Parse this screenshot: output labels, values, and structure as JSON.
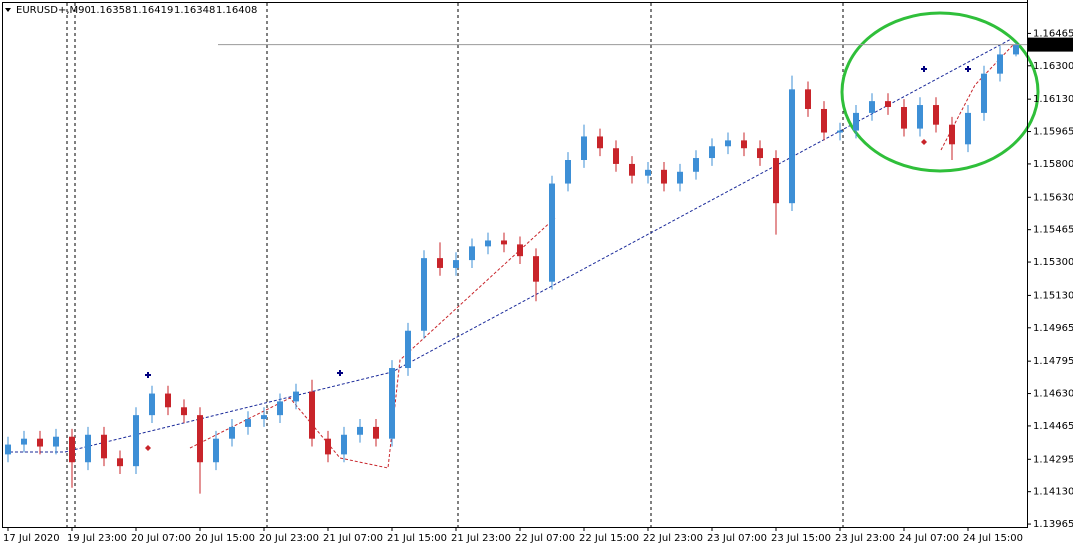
{
  "chart_data": {
    "type": "candlestick",
    "symbol": "EURUSD+,M90",
    "categories": [
      "17 Jul 2020",
      null,
      null,
      null,
      "19 Jul 23:00",
      null,
      null,
      null,
      "20 Jul 07:00",
      null,
      null,
      null,
      "20 Jul 15:00",
      null,
      null,
      null,
      "20 Jul 23:00",
      null,
      null,
      null,
      "21 Jul 07:00",
      null,
      null,
      null,
      "21 Jul 15:00",
      null,
      null,
      null,
      "21 Jul 23:00",
      null,
      null,
      null,
      "22 Jul 07:00",
      null,
      null,
      null,
      "22 Jul 15:00",
      null,
      null,
      null,
      "22 Jul 23:00",
      null,
      null,
      null,
      "23 Jul 07:00",
      null,
      null,
      null,
      "23 Jul 15:00",
      null,
      null,
      null,
      "23 Jul 23:00",
      null,
      null,
      null,
      "24 Jul 07:00",
      null,
      null,
      null,
      "24 Jul 15:00",
      null,
      null,
      null
    ],
    "open": [
      1.1432,
      1.1437,
      1.144,
      1.1436,
      1.1441,
      1.1428,
      1.1442,
      1.143,
      1.1426,
      1.1452,
      1.1463,
      1.1456,
      1.1452,
      1.1428,
      1.144,
      1.1446,
      1.145,
      1.1452,
      1.1459,
      1.1464,
      1.144,
      1.1432,
      1.1442,
      1.1446,
      1.144,
      1.1476,
      1.1495,
      1.1532,
      1.1527,
      1.1531,
      1.1538,
      1.1541,
      1.1539,
      1.1533,
      1.152,
      1.157,
      1.1582,
      1.1594,
      1.1588,
      1.158,
      1.1574,
      1.1577,
      1.157,
      1.1576,
      1.1583,
      1.1589,
      1.1592,
      1.1588,
      1.1583,
      1.156,
      1.1618,
      1.1608,
      1.1596,
      1.1597,
      1.1606,
      1.1612,
      1.1609,
      1.1598,
      1.161,
      1.16,
      1.159,
      1.1606,
      1.1626,
      1.16358
    ],
    "high": [
      1.1441,
      1.1444,
      1.1444,
      1.1445,
      1.1445,
      1.1446,
      1.1446,
      1.1434,
      1.1456,
      1.1467,
      1.1467,
      1.146,
      1.1456,
      1.1444,
      1.145,
      1.1454,
      1.1456,
      1.1463,
      1.1468,
      1.147,
      1.1444,
      1.1446,
      1.145,
      1.145,
      1.148,
      1.1499,
      1.1536,
      1.154,
      1.1535,
      1.1542,
      1.1545,
      1.1545,
      1.1543,
      1.1537,
      1.1574,
      1.1586,
      1.16,
      1.1598,
      1.1592,
      1.1584,
      1.1581,
      1.1581,
      1.158,
      1.1587,
      1.1593,
      1.1596,
      1.1596,
      1.1592,
      1.1587,
      1.1625,
      1.1622,
      1.1612,
      1.1601,
      1.161,
      1.1616,
      1.1616,
      1.1613,
      1.1614,
      1.1614,
      1.1604,
      1.161,
      1.163,
      1.164,
      1.16419
    ],
    "low": [
      1.1428,
      1.1433,
      1.1432,
      1.1432,
      1.1415,
      1.1424,
      1.1426,
      1.1422,
      1.1422,
      1.1448,
      1.1452,
      1.1448,
      1.1412,
      1.1424,
      1.1436,
      1.1442,
      1.1446,
      1.1448,
      1.1455,
      1.1436,
      1.1428,
      1.1428,
      1.1438,
      1.1436,
      1.1436,
      1.1472,
      1.1491,
      1.1523,
      1.1523,
      1.1527,
      1.1534,
      1.1535,
      1.1529,
      1.151,
      1.1516,
      1.1566,
      1.1578,
      1.1584,
      1.1576,
      1.157,
      1.157,
      1.1566,
      1.1566,
      1.1572,
      1.1579,
      1.1585,
      1.1584,
      1.1579,
      1.1544,
      1.1556,
      1.1604,
      1.1592,
      1.1592,
      1.1593,
      1.1602,
      1.1605,
      1.1594,
      1.1594,
      1.1596,
      1.1582,
      1.1586,
      1.1602,
      1.1622,
      1.16348
    ],
    "close": [
      1.1437,
      1.144,
      1.1436,
      1.1441,
      1.1428,
      1.1442,
      1.143,
      1.1426,
      1.1452,
      1.1463,
      1.1456,
      1.1452,
      1.1428,
      1.144,
      1.1446,
      1.145,
      1.1452,
      1.1459,
      1.1464,
      1.144,
      1.1432,
      1.1442,
      1.1446,
      1.144,
      1.1476,
      1.1495,
      1.1532,
      1.1527,
      1.1531,
      1.1538,
      1.1541,
      1.1539,
      1.1533,
      1.152,
      1.157,
      1.1582,
      1.1594,
      1.1588,
      1.158,
      1.1574,
      1.1577,
      1.157,
      1.1576,
      1.1583,
      1.1589,
      1.1592,
      1.1588,
      1.1583,
      1.156,
      1.1618,
      1.1608,
      1.1596,
      1.1597,
      1.1606,
      1.1612,
      1.1609,
      1.1598,
      1.161,
      1.16,
      1.159,
      1.1606,
      1.1626,
      1.16358,
      1.16408
    ],
    "up_color": "#3d8fd6",
    "down_color": "#c8242a",
    "ylim": [
      1.1395,
      1.1662
    ],
    "yticks": [
      {
        "value": 1.16465,
        "label": "1.16465"
      },
      {
        "value": 1.163,
        "label": "1.16300"
      },
      {
        "value": 1.1613,
        "label": "1.16130"
      },
      {
        "value": 1.15965,
        "label": "1.15965"
      },
      {
        "value": 1.158,
        "label": "1.15800"
      },
      {
        "value": 1.1563,
        "label": "1.15630"
      },
      {
        "value": 1.15465,
        "label": "1.15465"
      },
      {
        "value": 1.153,
        "label": "1.15300"
      },
      {
        "value": 1.1513,
        "label": "1.15130"
      },
      {
        "value": 1.14965,
        "label": "1.14965"
      },
      {
        "value": 1.14795,
        "label": "1.14795"
      },
      {
        "value": 1.1463,
        "label": "1.14630"
      },
      {
        "value": 1.14465,
        "label": "1.14465"
      },
      {
        "value": 1.14295,
        "label": "1.14295"
      },
      {
        "value": 1.1413,
        "label": "1.14130"
      },
      {
        "value": 1.13965,
        "label": "1.13965"
      }
    ]
  }
}
